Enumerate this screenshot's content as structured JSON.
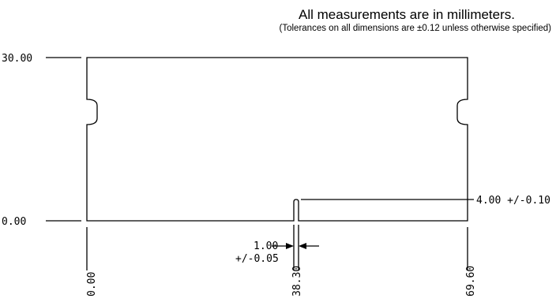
{
  "notes": {
    "main": "All measurements are in millimeters.",
    "tolerance": "(Tolerances on all dimensions are ±0.12 unless otherwise specified)"
  },
  "dimensions": {
    "y_top": "30.00",
    "y_bottom": "0.00",
    "x_left": "0.00",
    "x_notch": "38.30",
    "x_right": "69.60",
    "notch_depth": "4.00 +/-0.10",
    "notch_width_value": "1.00",
    "notch_width_tol": "+/-0.05"
  },
  "colors": {
    "line": "#000000",
    "background": "#ffffff"
  }
}
